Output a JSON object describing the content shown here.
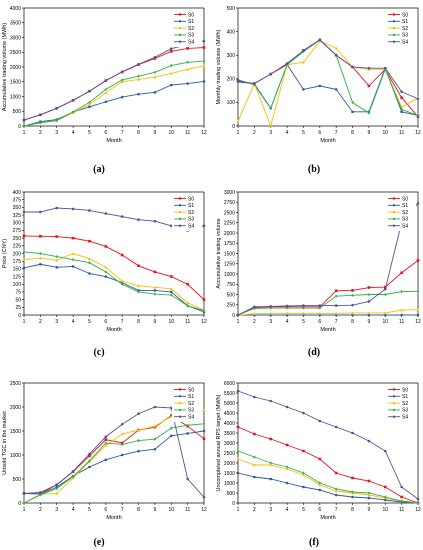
{
  "colors": {
    "S0": "#e8141b",
    "S1": "#2e59a8",
    "S2": "#f5c000",
    "S3": "#2db34a",
    "S4": "#5a4f9c"
  },
  "panel_labels": [
    "(a)",
    "(b)",
    "(c)",
    "(d)",
    "(e)",
    "(f)"
  ],
  "chart_data": [
    {
      "type": "line",
      "id": "a",
      "xlabel": "Month",
      "ylabel": "Accumulative trading volume (MWh)",
      "x": [
        1,
        2,
        3,
        4,
        5,
        6,
        7,
        8,
        9,
        10,
        11,
        12
      ],
      "xlim": [
        1,
        12
      ],
      "ylim": [
        0,
        4000
      ],
      "yticks": [
        0,
        500,
        1000,
        1500,
        2000,
        2500,
        3000,
        3500,
        4000
      ],
      "series": [
        {
          "name": "S0",
          "values": [
            200,
            380,
            600,
            870,
            1180,
            1540,
            1830,
            2080,
            2290,
            2530,
            2630,
            2660
          ]
        },
        {
          "name": "S1",
          "values": [
            0,
            150,
            220,
            470,
            650,
            820,
            980,
            1080,
            1140,
            1390,
            1440,
            1510
          ]
        },
        {
          "name": "S2",
          "values": [
            0,
            110,
            180,
            450,
            730,
            1130,
            1500,
            1580,
            1660,
            1780,
            1920,
            2040
          ]
        },
        {
          "name": "S3",
          "values": [
            0,
            110,
            190,
            480,
            800,
            1240,
            1560,
            1690,
            1820,
            2050,
            2160,
            2200
          ]
        },
        {
          "name": "S4",
          "values": [
            200,
            380,
            600,
            870,
            1180,
            1540,
            1840,
            2090,
            2330,
            2620,
            2760,
            2880
          ]
        }
      ]
    },
    {
      "type": "line",
      "id": "b",
      "xlabel": "Month",
      "ylabel": "Monthly trading volume (MWh)",
      "x": [
        1,
        2,
        3,
        4,
        5,
        6,
        7,
        8,
        9,
        10,
        11,
        12
      ],
      "xlim": [
        1,
        12
      ],
      "ylim": [
        0,
        500
      ],
      "yticks": [
        0,
        100,
        200,
        300,
        400,
        500
      ],
      "series": [
        {
          "name": "S0",
          "values": [
            190,
            180,
            220,
            260,
            320,
            365,
            300,
            250,
            170,
            240,
            120,
            40
          ]
        },
        {
          "name": "S1",
          "values": [
            195,
            175,
            75,
            260,
            155,
            170,
            155,
            60,
            60,
            245,
            60,
            45
          ]
        },
        {
          "name": "S2",
          "values": [
            20,
            180,
            0,
            260,
            270,
            360,
            330,
            250,
            240,
            240,
            80,
            120
          ]
        },
        {
          "name": "S3",
          "values": [
            185,
            180,
            75,
            260,
            315,
            365,
            300,
            100,
            55,
            240,
            70,
            45
          ]
        },
        {
          "name": "S4",
          "values": [
            190,
            180,
            220,
            265,
            320,
            365,
            300,
            250,
            245,
            245,
            145,
            115
          ]
        }
      ]
    },
    {
      "type": "line",
      "id": "c",
      "xlabel": "Month",
      "ylabel": "Price (CNY)",
      "x": [
        1,
        2,
        3,
        4,
        5,
        6,
        7,
        8,
        9,
        10,
        11,
        12
      ],
      "xlim": [
        1,
        12
      ],
      "ylim": [
        0,
        400
      ],
      "yticks": [
        0,
        25,
        50,
        75,
        100,
        125,
        150,
        175,
        200,
        225,
        250,
        275,
        300,
        325,
        350,
        375,
        400
      ],
      "series": [
        {
          "name": "S0",
          "values": [
            257,
            256,
            255,
            250,
            240,
            223,
            195,
            160,
            140,
            125,
            100,
            50
          ]
        },
        {
          "name": "S1",
          "values": [
            153,
            165,
            155,
            158,
            135,
            125,
            105,
            80,
            80,
            75,
            30,
            10
          ]
        },
        {
          "name": "S2",
          "values": [
            180,
            185,
            178,
            200,
            183,
            155,
            110,
            95,
            90,
            85,
            40,
            15
          ]
        },
        {
          "name": "S3",
          "values": [
            205,
            200,
            190,
            180,
            170,
            140,
            100,
            75,
            68,
            65,
            30,
            15
          ]
        },
        {
          "name": "S4",
          "values": [
            335,
            335,
            348,
            345,
            340,
            330,
            320,
            310,
            305,
            290,
            275,
            290
          ]
        }
      ]
    },
    {
      "type": "line",
      "id": "d",
      "xlabel": "Month",
      "ylabel": "Accumulative trading volume",
      "x": [
        1,
        2,
        3,
        4,
        5,
        6,
        7,
        8,
        9,
        10,
        11,
        12
      ],
      "xlim": [
        1,
        12
      ],
      "ylim": [
        0,
        3000
      ],
      "yticks": [
        0,
        250,
        500,
        750,
        1000,
        1250,
        1500,
        1750,
        2000,
        2250,
        2500,
        2750,
        3000
      ],
      "series": [
        {
          "name": "S0",
          "values": [
            0,
            180,
            200,
            200,
            200,
            200,
            590,
            600,
            670,
            680,
            1030,
            1330
          ]
        },
        {
          "name": "S1",
          "values": [
            0,
            0,
            0,
            0,
            0,
            0,
            0,
            0,
            0,
            0,
            0,
            0
          ]
        },
        {
          "name": "S2",
          "values": [
            0,
            30,
            40,
            40,
            40,
            40,
            40,
            50,
            50,
            50,
            120,
            130
          ]
        },
        {
          "name": "S3",
          "values": [
            0,
            160,
            170,
            170,
            170,
            170,
            460,
            480,
            500,
            500,
            570,
            580
          ]
        },
        {
          "name": "S4",
          "values": [
            0,
            200,
            210,
            220,
            230,
            230,
            230,
            240,
            330,
            630,
            2260,
            2720
          ]
        }
      ]
    },
    {
      "type": "line",
      "id": "e",
      "xlabel": "Month",
      "ylabel": "Unsold TGC in the market",
      "x": [
        1,
        2,
        3,
        4,
        5,
        6,
        7,
        8,
        9,
        10,
        11,
        12
      ],
      "xlim": [
        1,
        12
      ],
      "ylim": [
        0,
        2500
      ],
      "yticks": [
        0,
        500,
        1000,
        1500,
        2000,
        2500
      ],
      "series": [
        {
          "name": "S0",
          "values": [
            200,
            190,
            380,
            650,
            980,
            1320,
            1250,
            1520,
            1580,
            1820,
            1600,
            1340
          ]
        },
        {
          "name": "S1",
          "values": [
            200,
            190,
            330,
            560,
            750,
            900,
            1000,
            1080,
            1120,
            1400,
            1450,
            1500
          ]
        },
        {
          "name": "S2",
          "values": [
            0,
            180,
            200,
            520,
            860,
            1200,
            1440,
            1520,
            1600,
            1800,
            1820,
            1930
          ]
        },
        {
          "name": "S3",
          "values": [
            0,
            170,
            300,
            550,
            880,
            1250,
            1220,
            1300,
            1330,
            1560,
            1620,
            1650
          ]
        },
        {
          "name": "S4",
          "values": [
            200,
            220,
            380,
            660,
            1020,
            1380,
            1640,
            1860,
            2000,
            1980,
            500,
            120
          ]
        }
      ]
    },
    {
      "type": "line",
      "id": "f",
      "xlabel": "Month",
      "ylabel": "Uncompleted annual RPS target (MWh)",
      "x": [
        1,
        2,
        3,
        4,
        5,
        6,
        7,
        8,
        9,
        10,
        11,
        12
      ],
      "xlim": [
        1,
        12
      ],
      "ylim": [
        0,
        6000
      ],
      "yticks": [
        0,
        500,
        1000,
        1500,
        2000,
        2500,
        3000,
        3500,
        4000,
        4500,
        5000,
        5500,
        6000
      ],
      "series": [
        {
          "name": "S0",
          "values": [
            3800,
            3450,
            3200,
            2900,
            2600,
            2200,
            1500,
            1250,
            1100,
            800,
            300,
            0
          ]
        },
        {
          "name": "S1",
          "values": [
            1500,
            1300,
            1200,
            1000,
            800,
            650,
            400,
            300,
            250,
            150,
            50,
            0
          ]
        },
        {
          "name": "S2",
          "values": [
            2200,
            1900,
            1900,
            1700,
            1400,
            900,
            600,
            500,
            400,
            250,
            100,
            0
          ]
        },
        {
          "name": "S3",
          "values": [
            2600,
            2300,
            2000,
            1800,
            1500,
            1000,
            700,
            550,
            500,
            300,
            100,
            0
          ]
        },
        {
          "name": "S4",
          "values": [
            5600,
            5300,
            5100,
            4800,
            4500,
            4100,
            3800,
            3500,
            3100,
            2600,
            800,
            200
          ]
        }
      ]
    }
  ]
}
